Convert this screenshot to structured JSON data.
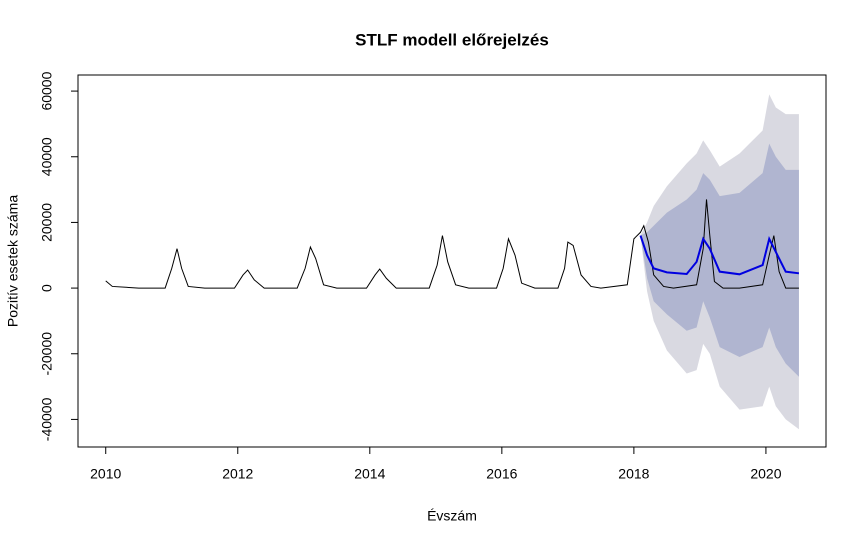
{
  "chart_data": {
    "type": "line",
    "title": "STLF modell előrejelzés",
    "xlabel": "Évszám",
    "ylabel": "Pozitív esetek száma",
    "xlim": [
      2009.58,
      2020.91
    ],
    "ylim": [
      -48400,
      64900
    ],
    "xticks": [
      2010,
      2012,
      2014,
      2016,
      2018,
      2020
    ],
    "yticks": [
      -40000,
      -20000,
      0,
      20000,
      40000,
      60000
    ],
    "bands": [
      {
        "color": "#d9d9e1",
        "x": [
          2018.1,
          2018.2,
          2018.3,
          2018.5,
          2018.8,
          2018.95,
          2019.05,
          2019.15,
          2019.3,
          2019.6,
          2019.95,
          2020.05,
          2020.15,
          2020.3,
          2020.5
        ],
        "upper": [
          16000,
          20000,
          25000,
          31000,
          38000,
          41000,
          45000,
          42000,
          37000,
          41000,
          48000,
          59000,
          55000,
          53000,
          53000
        ],
        "lower": [
          16000,
          -1000,
          -10000,
          -19000,
          -26000,
          -25000,
          -17000,
          -20000,
          -30000,
          -37000,
          -36000,
          -30000,
          -36000,
          -40000,
          -43000
        ]
      },
      {
        "color": "#b0b5d0",
        "x": [
          2018.1,
          2018.2,
          2018.3,
          2018.5,
          2018.8,
          2018.95,
          2019.05,
          2019.15,
          2019.3,
          2019.6,
          2019.95,
          2020.05,
          2020.15,
          2020.3,
          2020.5
        ],
        "upper": [
          16000,
          17000,
          19000,
          23000,
          27000,
          30000,
          35000,
          33000,
          28000,
          29000,
          35000,
          44000,
          40000,
          36000,
          36000
        ],
        "lower": [
          16000,
          3000,
          -4000,
          -8000,
          -13000,
          -12000,
          -4000,
          -9000,
          -18000,
          -21000,
          -18000,
          -12000,
          -18000,
          -23000,
          -27000
        ]
      }
    ],
    "series": [
      {
        "color": "#000000",
        "x": [
          2010,
          2010.1,
          2010.5,
          2010.9,
          2011.0,
          2011.08,
          2011.15,
          2011.25,
          2011.5,
          2011.95,
          2012.08,
          2012.15,
          2012.25,
          2012.4,
          2012.9,
          2013.02,
          2013.1,
          2013.18,
          2013.3,
          2013.5,
          2013.95,
          2014.08,
          2014.15,
          2014.25,
          2014.4,
          2014.9,
          2015.02,
          2015.1,
          2015.18,
          2015.3,
          2015.5,
          2015.92,
          2016.02,
          2016.1,
          2016.2,
          2016.3,
          2016.5,
          2016.85,
          2016.95,
          2017.0,
          2017.08,
          2017.2,
          2017.35,
          2017.5,
          2017.9,
          2018.0,
          2018.1,
          2018.15,
          2018.22,
          2018.3,
          2018.45,
          2018.6,
          2018.95,
          2019.05,
          2019.1,
          2019.15,
          2019.22,
          2019.35,
          2019.6,
          2019.95,
          2020.05,
          2020.12,
          2020.2,
          2020.3,
          2020.5
        ],
        "values": [
          2200,
          500,
          0,
          0,
          6000,
          12000,
          6000,
          500,
          0,
          0,
          4000,
          5500,
          2500,
          0,
          0,
          6000,
          12500,
          9000,
          1000,
          0,
          0,
          4000,
          5800,
          3000,
          0,
          0,
          7000,
          16000,
          8000,
          1000,
          0,
          0,
          6000,
          15000,
          10000,
          1500,
          0,
          0,
          6000,
          14000,
          13000,
          4000,
          500,
          0,
          1000,
          15000,
          17000,
          19000,
          14000,
          4000,
          500,
          0,
          1000,
          12000,
          27000,
          16000,
          2000,
          0,
          0,
          1000,
          10000,
          16000,
          5000,
          0,
          0
        ]
      },
      {
        "color": "#0000e0",
        "x": [
          2018.1,
          2018.2,
          2018.3,
          2018.5,
          2018.8,
          2018.95,
          2019.05,
          2019.15,
          2019.3,
          2019.6,
          2019.95,
          2020.05,
          2020.15,
          2020.3,
          2020.5
        ],
        "values": [
          16000,
          10000,
          6000,
          4800,
          4300,
          8000,
          15000,
          12000,
          5000,
          4200,
          7000,
          15000,
          11000,
          5000,
          4500
        ]
      }
    ]
  }
}
